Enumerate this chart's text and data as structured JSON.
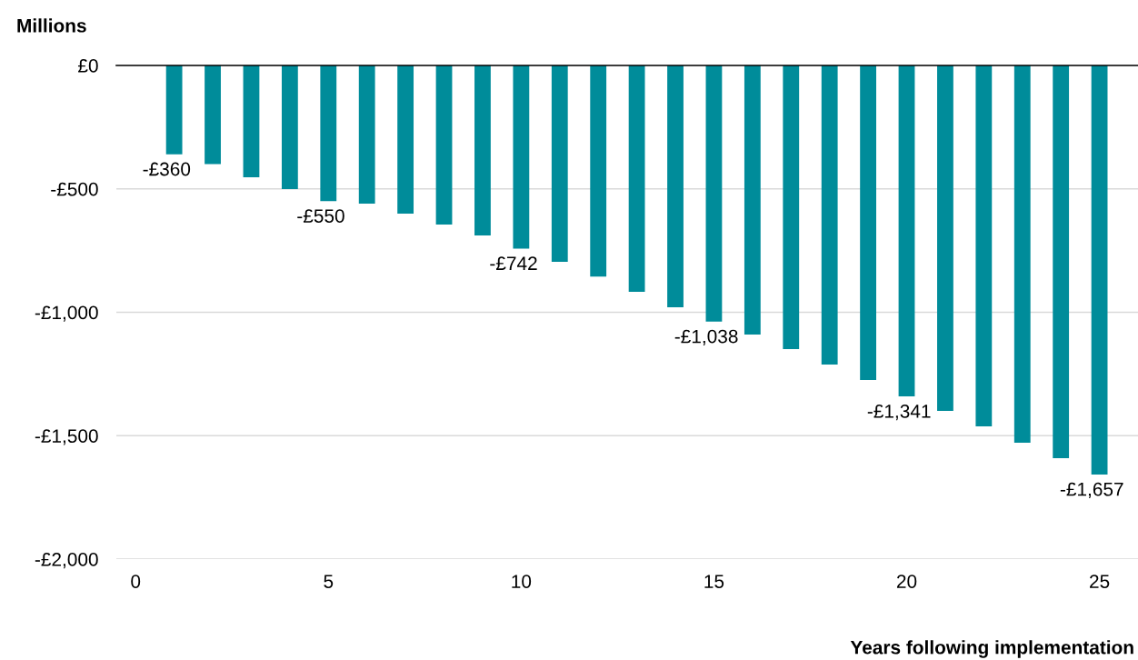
{
  "chart_data": {
    "type": "bar",
    "ylabel": "Millions",
    "xlabel": "Years following implementation",
    "x": [
      1,
      2,
      3,
      4,
      5,
      6,
      7,
      8,
      9,
      10,
      11,
      12,
      13,
      14,
      15,
      16,
      17,
      18,
      19,
      20,
      21,
      22,
      23,
      24,
      25
    ],
    "values": [
      -360,
      -400,
      -453,
      -501,
      -550,
      -560,
      -600,
      -645,
      -689,
      -742,
      -796,
      -855,
      -917,
      -980,
      -1038,
      -1090,
      -1149,
      -1212,
      -1274,
      -1341,
      -1400,
      -1462,
      -1529,
      -1591,
      -1657
    ],
    "value_labels": [
      "-£360",
      null,
      null,
      null,
      "-£550",
      null,
      null,
      null,
      null,
      "-£742",
      null,
      null,
      null,
      null,
      "-£1,038",
      null,
      null,
      null,
      null,
      "-£1,341",
      null,
      null,
      null,
      null,
      "-£1,657"
    ],
    "color": "#008c9a",
    "xlim": [
      -0.5,
      26
    ],
    "xticks": [
      0,
      5,
      10,
      15,
      20,
      25
    ],
    "ylim": [
      -2000,
      0
    ],
    "yticks": [
      {
        "value": 0,
        "label": "£0"
      },
      {
        "value": -500,
        "label": "-£500"
      },
      {
        "value": -1000,
        "label": "-£1,000"
      },
      {
        "value": -1500,
        "label": "-£1,500"
      },
      {
        "value": -2000,
        "label": "-£2,000"
      }
    ],
    "grid": "y"
  }
}
